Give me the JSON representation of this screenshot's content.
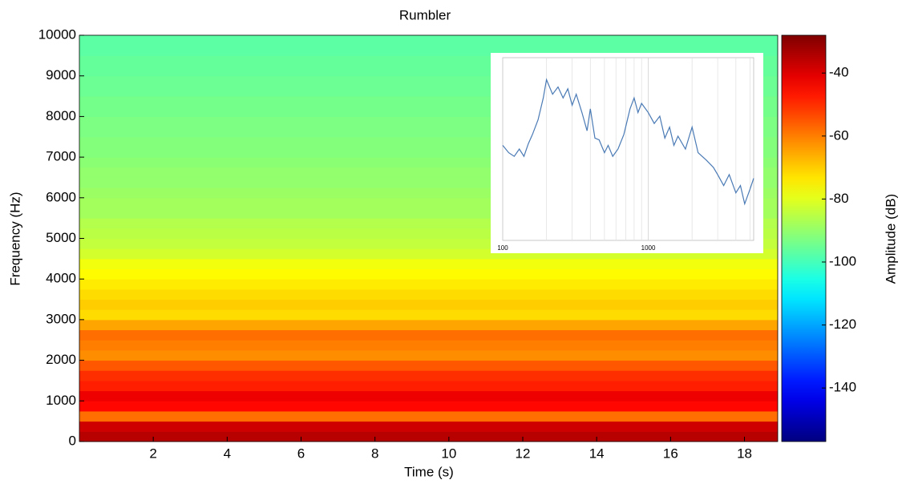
{
  "chart_data": [
    {
      "type": "heatmap",
      "title": "Rumbler",
      "xlabel": "Time (s)",
      "ylabel": "Frequency (Hz)",
      "xlim": [
        0,
        18.9
      ],
      "xticks": [
        2,
        4,
        6,
        8,
        10,
        12,
        14,
        16,
        18
      ],
      "ylim": [
        0,
        10000
      ],
      "yticks": [
        0,
        1000,
        2000,
        3000,
        4000,
        5000,
        6000,
        7000,
        8000,
        9000,
        10000
      ],
      "frequency_bins": [
        0,
        250,
        500,
        750,
        1000,
        1250,
        1500,
        1750,
        2000,
        2250,
        2500,
        2750,
        3000,
        3250,
        3500,
        3750,
        4000,
        4250,
        4500,
        4750,
        5000,
        5250,
        5500,
        5750,
        6000,
        6250,
        6500,
        6750,
        7000,
        7250,
        7500,
        7750,
        8000,
        8250,
        8500,
        8750,
        9000,
        9250,
        9500,
        9750,
        10000
      ],
      "amplitude": [
        -35,
        -38,
        -58,
        -45,
        -42,
        -48,
        -50,
        -55,
        -62,
        -60,
        -58,
        -65,
        -72,
        -70,
        -72,
        -74,
        -76,
        -78,
        -82,
        -84,
        -85,
        -86,
        -88,
        -88,
        -89,
        -90,
        -90,
        -91,
        -92,
        -92,
        -93,
        -93,
        -94,
        -94,
        -95,
        -95,
        -96,
        -96,
        -97,
        -97
      ],
      "colormap": "jet",
      "clabel": "Amplitude (dB)",
      "clim": [
        -157,
        -28
      ],
      "cticks": [
        -140,
        -120,
        -100,
        -80,
        -60,
        -40
      ]
    },
    {
      "type": "line",
      "log_x": true,
      "xlim": [
        100,
        5300
      ],
      "ylim": [
        0,
        100
      ],
      "xticks": [
        100,
        1000
      ],
      "xgrid": [
        200,
        300,
        400,
        500,
        600,
        700,
        800,
        900,
        2000,
        3000,
        4000,
        5000
      ],
      "series": [
        {
          "color": "#4a7ab5",
          "x": [
            100,
            110,
            120,
            130,
            140,
            150,
            160,
            175,
            190,
            200,
            220,
            240,
            260,
            280,
            300,
            320,
            350,
            380,
            400,
            430,
            460,
            500,
            530,
            570,
            620,
            680,
            750,
            800,
            850,
            900,
            1000,
            1100,
            1200,
            1300,
            1400,
            1500,
            1600,
            1800,
            2000,
            2200,
            2500,
            2800,
            3000,
            3300,
            3600,
            4000,
            4300,
            4600,
            5000,
            5300
          ],
          "values": [
            52,
            48,
            46,
            50,
            46,
            53,
            58,
            66,
            78,
            88,
            80,
            84,
            78,
            83,
            74,
            80,
            70,
            60,
            72,
            56,
            55,
            48,
            52,
            46,
            50,
            58,
            72,
            78,
            70,
            75,
            70,
            64,
            68,
            56,
            62,
            52,
            57,
            50,
            62,
            48,
            44,
            40,
            36,
            30,
            36,
            26,
            30,
            20,
            28,
            34
          ]
        }
      ]
    }
  ]
}
